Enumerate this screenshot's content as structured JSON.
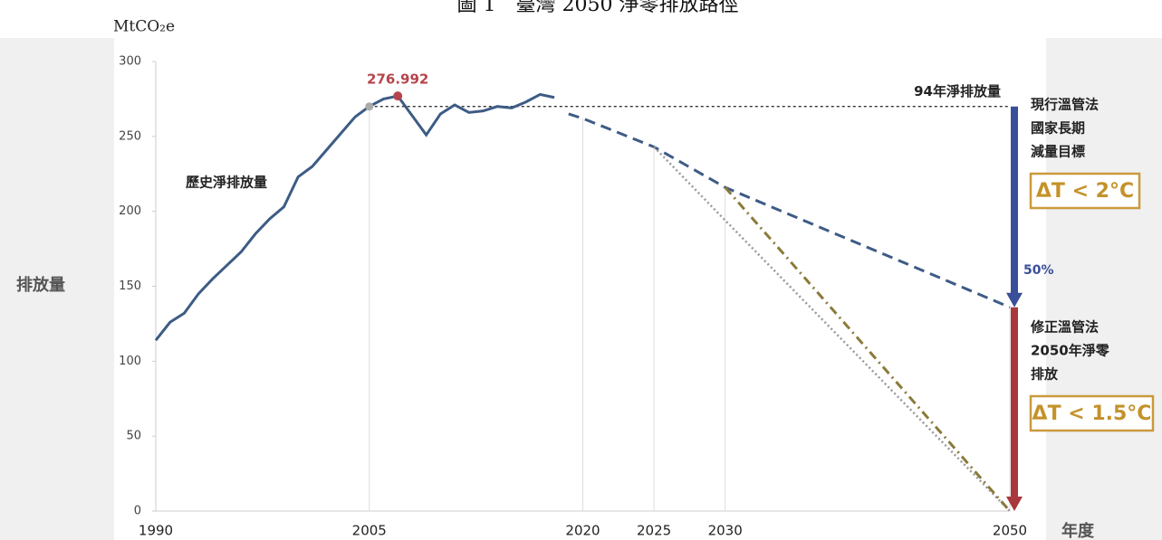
{
  "chart_data": {
    "type": "line",
    "title": "圖 1　臺灣 2050 淨零排放路徑",
    "unit_label": "MtCO₂e",
    "ylabel": "排放量",
    "xlabel": "年度",
    "x": [
      1990,
      1991,
      1992,
      1993,
      1994,
      1995,
      1996,
      1997,
      1998,
      1999,
      2000,
      2001,
      2002,
      2003,
      2004,
      2005,
      2006,
      2007,
      2008,
      2009,
      2010,
      2011,
      2012,
      2013,
      2014,
      2015,
      2016,
      2017,
      2018,
      2019,
      2020,
      2025,
      2030,
      2050
    ],
    "xlim": [
      1990,
      2050
    ],
    "xticks": [
      1990,
      2005,
      2020,
      2025,
      2030,
      2050
    ],
    "ylim": [
      0,
      300
    ],
    "yticks": [
      0,
      50,
      100,
      150,
      200,
      250,
      300
    ],
    "series": [
      {
        "name": "歷史淨排放量",
        "color": "#3d5c85",
        "style": "solid",
        "values": [
          114,
          126,
          132,
          145,
          155,
          164,
          173,
          185,
          195,
          203,
          223,
          230,
          241,
          252,
          263,
          270,
          275,
          276.992,
          264,
          251,
          265,
          271,
          266,
          267,
          270,
          269,
          273,
          278,
          276,
          null,
          null,
          null,
          null,
          null
        ],
        "value_labels": [
          null,
          null,
          null,
          null,
          null,
          null,
          null,
          null,
          null,
          null,
          null,
          null,
          null,
          null,
          null,
          null,
          null,
          "276.992",
          null,
          null,
          null,
          null,
          null,
          null,
          null,
          null,
          null,
          null,
          null,
          null,
          null,
          null,
          null,
          null
        ]
      },
      {
        "color": "#3d5c85",
        "style": "dashed",
        "values": [
          null,
          null,
          null,
          null,
          null,
          null,
          null,
          null,
          null,
          null,
          null,
          null,
          null,
          null,
          null,
          null,
          null,
          null,
          null,
          null,
          null,
          null,
          null,
          null,
          null,
          null,
          null,
          null,
          null,
          265,
          262,
          243,
          216,
          136
        ]
      },
      {
        "color": "#999999",
        "style": "dotted",
        "values": [
          null,
          null,
          null,
          null,
          null,
          null,
          null,
          null,
          null,
          null,
          null,
          null,
          null,
          null,
          null,
          null,
          null,
          null,
          null,
          null,
          null,
          null,
          null,
          null,
          null,
          null,
          null,
          null,
          null,
          null,
          null,
          243,
          194,
          0
        ]
      },
      {
        "color": "#8a7a3a",
        "style": "dashdot",
        "values": [
          null,
          null,
          null,
          null,
          null,
          null,
          null,
          null,
          null,
          null,
          null,
          null,
          null,
          null,
          null,
          null,
          null,
          null,
          null,
          null,
          null,
          null,
          null,
          null,
          null,
          null,
          null,
          null,
          null,
          null,
          null,
          null,
          216,
          0
        ]
      }
    ],
    "reference": {
      "value": 270,
      "from": 2005,
      "label": "94年淨排放量"
    },
    "arrows": [
      {
        "color": "#3a4f9a",
        "lines": [
          "現行溫管法",
          "國家長期",
          "減量目標"
        ],
        "badge": "ΔT < 2°C",
        "note": "50%"
      },
      {
        "color": "#a8383c",
        "lines": [
          "修正溫管法",
          "2050年淨零",
          "排放"
        ],
        "badge": "ΔT < 1.5°C"
      }
    ]
  }
}
